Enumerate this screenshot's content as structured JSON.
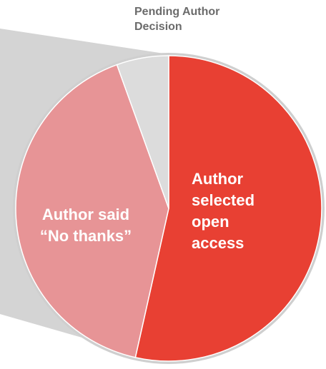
{
  "chart_data": {
    "type": "pie",
    "title": "",
    "slices": [
      {
        "label_lines": [
          "Author",
          "selected",
          "open",
          "access"
        ],
        "value": 53.5,
        "color": "#e84033"
      },
      {
        "label_lines": [
          "Author said",
          "“No thanks”"
        ],
        "value": 41.0,
        "color": "#e79496"
      },
      {
        "label_lines": [
          "Pending Author",
          "Decision"
        ],
        "value": 5.5,
        "color": "#dcdcdc"
      }
    ]
  }
}
